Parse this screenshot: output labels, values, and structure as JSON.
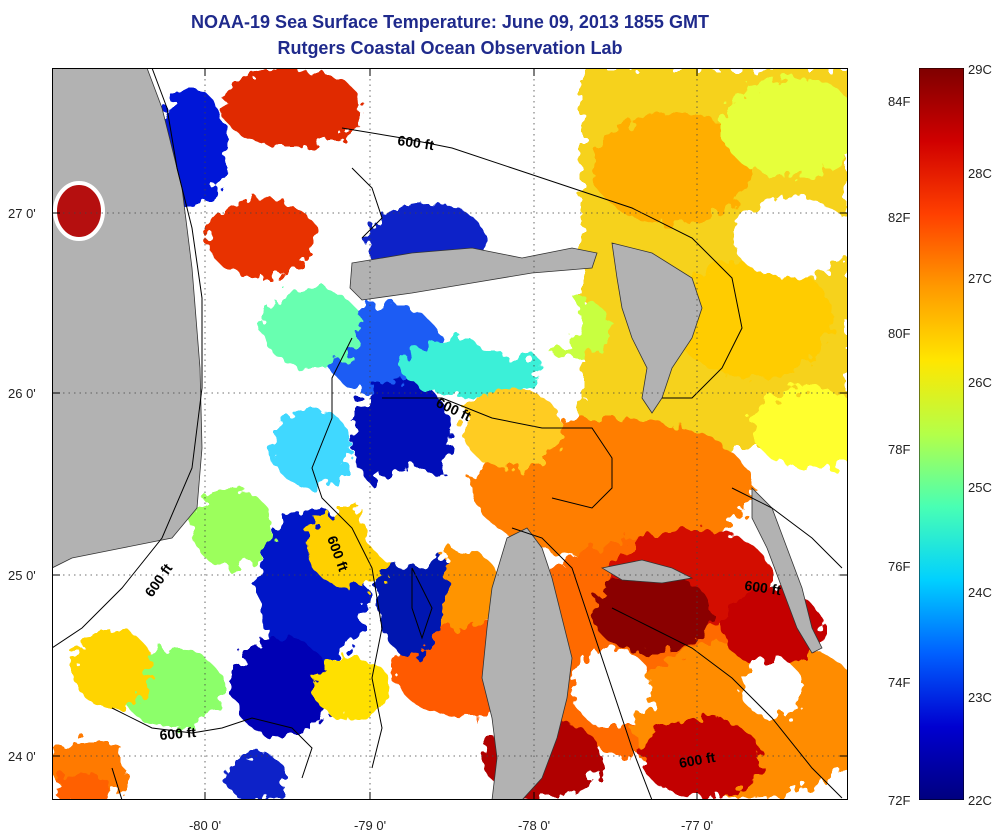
{
  "title": {
    "line1": "NOAA-19 Sea Surface Temperature:  June 09, 2013 1855 GMT",
    "line2": "Rutgers Coastal Ocean Observation Lab"
  },
  "map": {
    "lat_labels": [
      "27 0'",
      "26 0'",
      "25 0'",
      "24 0'"
    ],
    "lon_labels": [
      "-80 0'",
      "-79 0'",
      "-78 0'",
      "-77 0'"
    ],
    "contour_labels": [
      "600 ft",
      "600 ft",
      "600 ft",
      "600 ft",
      "600 ft",
      "600 ft"
    ],
    "colors": {
      "land": "#b2b2b2",
      "cloud": "#ffffff",
      "contour": "#000000"
    }
  },
  "colorbar": {
    "celsius_labels": [
      "29C",
      "28C",
      "27C",
      "26C",
      "25C",
      "24C",
      "23C",
      "22C"
    ],
    "fahrenheit_labels": [
      "84F",
      "82F",
      "80F",
      "78F",
      "76F",
      "74F",
      "72F"
    ],
    "colormap": [
      "#7f0000",
      "#d00000",
      "#ff4000",
      "#ff9a00",
      "#ffe600",
      "#b4ff48",
      "#48ffb4",
      "#00d0ff",
      "#0060ff",
      "#0000d0",
      "#00007f"
    ]
  }
}
